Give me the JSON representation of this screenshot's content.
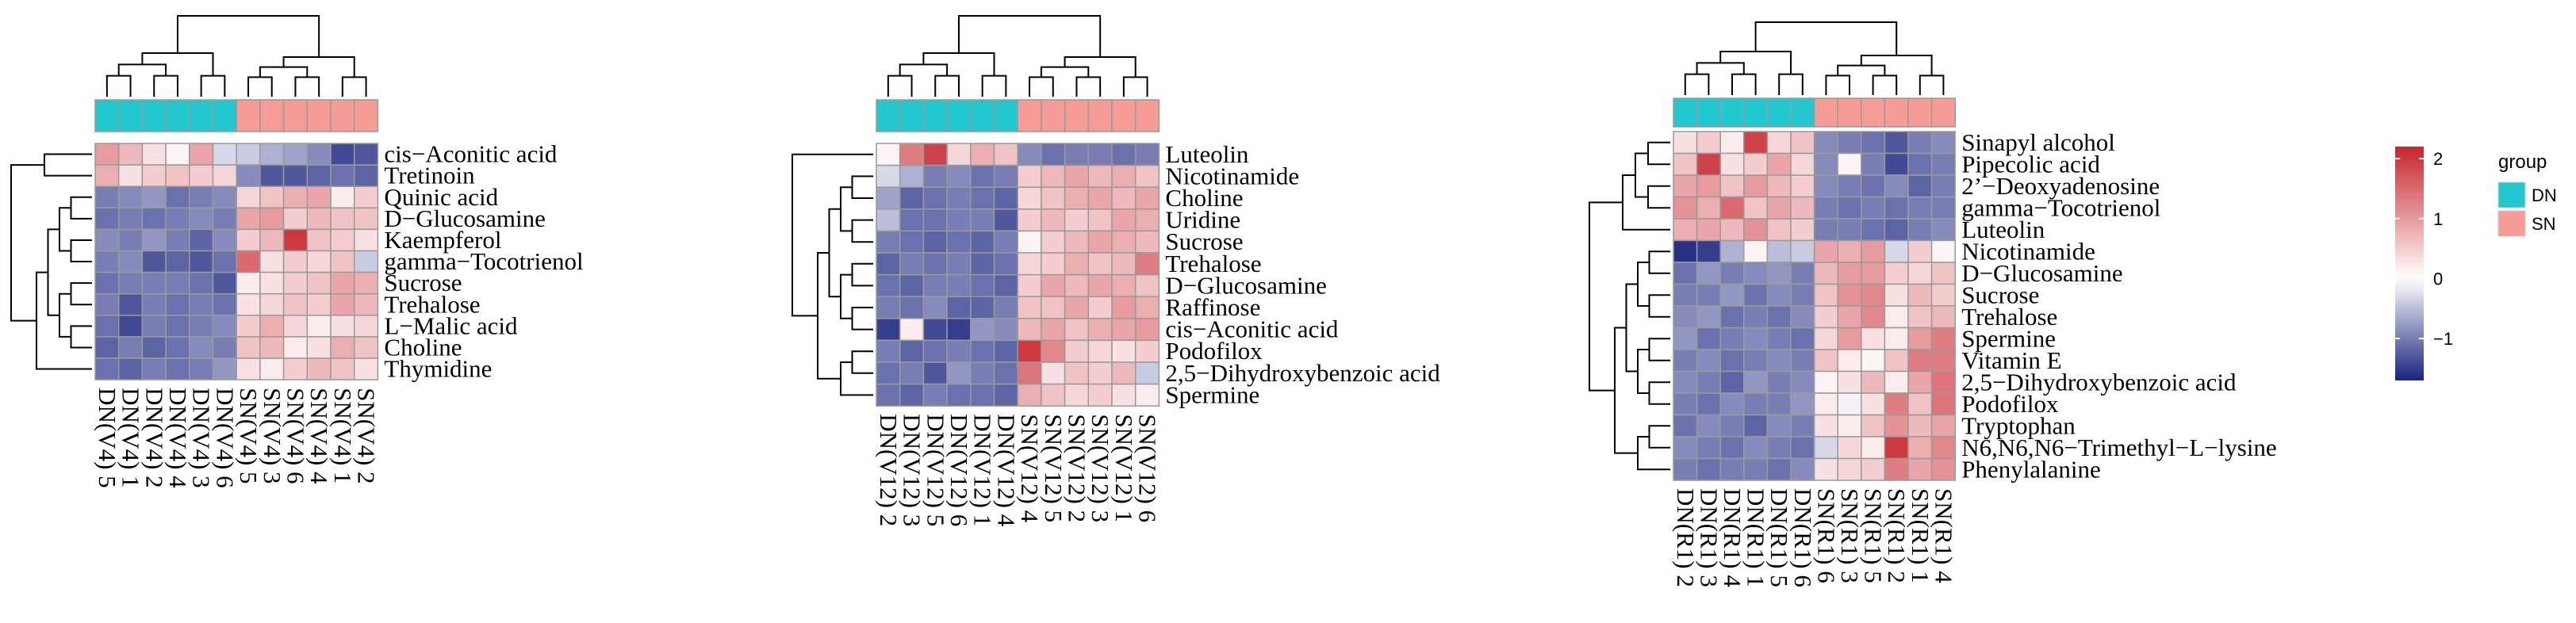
{
  "chart_data": [
    {
      "type": "heatmap",
      "group_colors": {
        "DN": "#22C7CF",
        "SN": "#F59C96"
      },
      "columns": [
        {
          "label": "DN(V4) 5",
          "group": "DN"
        },
        {
          "label": "DN(V4) 1",
          "group": "DN"
        },
        {
          "label": "DN(V4) 2",
          "group": "DN"
        },
        {
          "label": "DN(V4) 4",
          "group": "DN"
        },
        {
          "label": "DN(V4) 3",
          "group": "DN"
        },
        {
          "label": "DN(V4) 6",
          "group": "DN"
        },
        {
          "label": "SN(V4) 5",
          "group": "SN"
        },
        {
          "label": "SN(V4) 3",
          "group": "SN"
        },
        {
          "label": "SN(V4) 6",
          "group": "SN"
        },
        {
          "label": "SN(V4) 4",
          "group": "SN"
        },
        {
          "label": "SN(V4) 1",
          "group": "SN"
        },
        {
          "label": "SN(V4) 2",
          "group": "SN"
        }
      ],
      "rows": [
        "cis−Aconitic acid",
        "Tretinoin",
        "Quinic acid",
        "D−Glucosamine",
        "Kaempferol",
        "gamma−Tocotrienol",
        "Sucrose",
        "Trehalose",
        "L−Malic acid",
        "Choline",
        "Thymidine"
      ],
      "values": [
        [
          1.0,
          0.7,
          0.3,
          0.1,
          0.9,
          -0.3,
          -0.4,
          -0.6,
          -0.7,
          -0.9,
          -1.4,
          -1.3
        ],
        [
          0.8,
          0.3,
          0.5,
          0.6,
          0.5,
          0.4,
          -0.9,
          -1.3,
          -1.3,
          -1.2,
          -1.1,
          -1.2
        ],
        [
          -1.0,
          -0.9,
          -0.8,
          -1.1,
          -1.0,
          -0.9,
          0.4,
          0.6,
          0.8,
          0.9,
          0.2,
          0.5
        ],
        [
          -1.1,
          -1.0,
          -1.1,
          -1.0,
          -0.9,
          -1.0,
          0.9,
          1.0,
          0.5,
          0.7,
          0.6,
          0.6
        ],
        [
          -0.9,
          -1.0,
          -0.8,
          -1.0,
          -1.2,
          -0.9,
          0.5,
          0.7,
          2.0,
          0.6,
          0.5,
          0.3
        ],
        [
          -1.0,
          -0.9,
          -1.3,
          -1.2,
          -1.3,
          -1.1,
          1.5,
          0.3,
          0.5,
          0.4,
          0.6,
          -0.4
        ],
        [
          -1.1,
          -1.0,
          -1.0,
          -1.0,
          -1.1,
          -1.3,
          0.2,
          0.3,
          0.5,
          0.6,
          0.9,
          0.8
        ],
        [
          -1.0,
          -1.3,
          -1.0,
          -1.1,
          -1.0,
          -1.1,
          0.3,
          0.4,
          0.6,
          0.5,
          0.9,
          0.7
        ],
        [
          -1.1,
          -1.4,
          -1.0,
          -1.1,
          -1.0,
          -0.9,
          0.5,
          0.8,
          0.4,
          0.2,
          0.3,
          0.4
        ],
        [
          -1.2,
          -1.0,
          -1.2,
          -1.1,
          -0.9,
          -1.0,
          0.6,
          0.7,
          0.2,
          0.3,
          0.8,
          0.6
        ],
        [
          -1.1,
          -1.2,
          -1.0,
          -1.1,
          -1.0,
          -0.8,
          0.3,
          0.2,
          0.5,
          0.7,
          0.6,
          0.3
        ]
      ]
    },
    {
      "type": "heatmap",
      "group_colors": {
        "DN": "#22C7CF",
        "SN": "#F59C96"
      },
      "columns": [
        {
          "label": "DN(V12) 2",
          "group": "DN"
        },
        {
          "label": "DN(V12) 3",
          "group": "DN"
        },
        {
          "label": "DN(V12) 5",
          "group": "DN"
        },
        {
          "label": "DN(V12) 6",
          "group": "DN"
        },
        {
          "label": "DN(V12) 1",
          "group": "DN"
        },
        {
          "label": "DN(V12) 4",
          "group": "DN"
        },
        {
          "label": "SN(V12) 4",
          "group": "SN"
        },
        {
          "label": "SN(V12) 5",
          "group": "SN"
        },
        {
          "label": "SN(V12) 2",
          "group": "SN"
        },
        {
          "label": "SN(V12) 3",
          "group": "SN"
        },
        {
          "label": "SN(V12) 1",
          "group": "SN"
        },
        {
          "label": "SN(V12) 6",
          "group": "SN"
        }
      ],
      "rows": [
        "Luteolin",
        "Nicotinamide",
        "Choline",
        "Uridine",
        "Sucrose",
        "Trehalose",
        "D−Glucosamine",
        "Raffinose",
        "cis−Aconitic acid",
        "Podofilox",
        "2,5−Dihydroxybenzoic acid",
        "Spermine"
      ],
      "values": [
        [
          0.1,
          1.3,
          1.9,
          0.4,
          0.8,
          0.6,
          -0.9,
          -1.1,
          -1.0,
          -1.0,
          -1.1,
          -1.0
        ],
        [
          -0.3,
          -0.6,
          -1.0,
          -0.9,
          -1.1,
          -1.0,
          0.5,
          0.7,
          0.9,
          0.7,
          0.8,
          0.6
        ],
        [
          -0.7,
          -1.2,
          -1.1,
          -1.0,
          -1.1,
          -1.2,
          0.4,
          0.6,
          0.8,
          0.9,
          0.7,
          0.9
        ],
        [
          -0.5,
          -1.1,
          -1.1,
          -1.0,
          -1.0,
          -1.3,
          0.5,
          0.7,
          0.5,
          0.6,
          0.9,
          0.8
        ],
        [
          -1.0,
          -1.1,
          -1.2,
          -1.1,
          -1.2,
          -1.0,
          0.1,
          0.5,
          0.7,
          0.9,
          0.8,
          0.7
        ],
        [
          -1.2,
          -1.0,
          -1.1,
          -1.0,
          -1.2,
          -1.1,
          0.4,
          0.5,
          0.8,
          0.6,
          0.7,
          1.3
        ],
        [
          -1.1,
          -1.2,
          -1.0,
          -1.0,
          -1.1,
          -1.2,
          0.5,
          0.9,
          0.7,
          0.9,
          0.8,
          0.6
        ],
        [
          -1.0,
          -1.1,
          -0.9,
          -1.2,
          -1.2,
          -1.0,
          0.6,
          0.6,
          0.9,
          0.5,
          1.0,
          0.8
        ],
        [
          -1.5,
          0.2,
          -1.4,
          -1.5,
          -0.8,
          -0.9,
          0.7,
          0.9,
          0.6,
          0.8,
          0.9,
          1.0
        ],
        [
          -1.0,
          -1.2,
          -1.1,
          -1.0,
          -1.1,
          -1.2,
          2.0,
          1.2,
          0.5,
          0.4,
          0.3,
          0.5
        ],
        [
          -1.1,
          -1.0,
          -1.3,
          -0.8,
          -1.0,
          -1.1,
          1.4,
          0.3,
          0.6,
          0.5,
          0.7,
          -0.4
        ],
        [
          -1.1,
          -1.2,
          -1.0,
          -1.1,
          -1.1,
          -1.2,
          0.8,
          0.6,
          0.4,
          0.5,
          0.3,
          0.2
        ]
      ]
    },
    {
      "type": "heatmap",
      "group_colors": {
        "DN": "#22C7CF",
        "SN": "#F59C96"
      },
      "columns": [
        {
          "label": "DN(R1) 2",
          "group": "DN"
        },
        {
          "label": "DN(R1) 3",
          "group": "DN"
        },
        {
          "label": "DN(R1) 4",
          "group": "DN"
        },
        {
          "label": "DN(R1) 1",
          "group": "DN"
        },
        {
          "label": "DN(R1) 5",
          "group": "DN"
        },
        {
          "label": "DN(R1) 6",
          "group": "DN"
        },
        {
          "label": "SN(R1) 6",
          "group": "SN"
        },
        {
          "label": "SN(R1) 3",
          "group": "SN"
        },
        {
          "label": "SN(R1) 5",
          "group": "SN"
        },
        {
          "label": "SN(R1) 2",
          "group": "SN"
        },
        {
          "label": "SN(R1) 1",
          "group": "SN"
        },
        {
          "label": "SN(R1) 4",
          "group": "SN"
        }
      ],
      "rows": [
        "Sinapyl alcohol",
        "Pipecolic acid",
        "2’−Deoxyadenosine",
        "gamma−Tocotrienol",
        "Luteolin",
        "Nicotinamide",
        "D−Glucosamine",
        "Sucrose",
        "Trehalose",
        "Spermine",
        "Vitamin E",
        "2,5−Dihydroxybenzoic acid",
        "Podofilox",
        "Tryptophan",
        "N6,N6,N6−Trimethyl−L−lysine",
        "Phenylalanine"
      ],
      "values": [
        [
          0.3,
          0.5,
          0.2,
          1.9,
          0.4,
          0.6,
          -0.9,
          -1.0,
          -1.1,
          -1.3,
          -1.0,
          -0.9
        ],
        [
          0.6,
          1.9,
          0.3,
          0.5,
          0.9,
          0.4,
          -0.9,
          0.1,
          -1.0,
          -1.4,
          -1.1,
          -1.0
        ],
        [
          0.9,
          1.0,
          0.6,
          1.0,
          0.7,
          0.5,
          -0.9,
          -1.0,
          -1.1,
          -0.9,
          -1.2,
          -1.0
        ],
        [
          1.1,
          0.8,
          1.5,
          0.6,
          0.9,
          0.7,
          -1.0,
          -1.1,
          -1.0,
          -1.1,
          -1.0,
          -1.0
        ],
        [
          0.8,
          0.9,
          0.7,
          1.1,
          0.6,
          0.5,
          -1.0,
          -1.0,
          -1.1,
          -1.2,
          -1.0,
          -0.9
        ],
        [
          -1.6,
          -1.5,
          -0.6,
          0.1,
          -0.5,
          -0.4,
          0.9,
          0.8,
          1.0,
          -0.3,
          0.5,
          0.1
        ],
        [
          -1.1,
          -0.8,
          -1.0,
          -0.9,
          -0.8,
          -1.0,
          0.7,
          1.0,
          1.0,
          0.5,
          0.4,
          0.6
        ],
        [
          -1.0,
          -1.0,
          -0.8,
          -1.1,
          -0.9,
          -1.0,
          0.6,
          1.1,
          1.2,
          0.3,
          0.7,
          0.5
        ],
        [
          -0.9,
          -0.8,
          -1.1,
          -1.0,
          -1.1,
          -0.9,
          0.5,
          0.9,
          1.2,
          0.2,
          0.6,
          0.7
        ],
        [
          -0.8,
          -1.1,
          -1.0,
          -0.9,
          -1.0,
          -1.1,
          0.4,
          1.0,
          0.3,
          0.2,
          1.0,
          1.3
        ],
        [
          -1.0,
          -0.9,
          -1.1,
          -1.0,
          -0.9,
          -1.0,
          0.6,
          0.2,
          0.1,
          0.6,
          1.3,
          1.3
        ],
        [
          -0.9,
          -1.0,
          -1.2,
          -0.8,
          -1.0,
          -0.9,
          0.1,
          0.3,
          0.7,
          0.2,
          0.9,
          1.4
        ],
        [
          -1.0,
          -1.1,
          -0.9,
          -1.0,
          -1.0,
          -0.8,
          0.2,
          -0.1,
          0.3,
          1.3,
          0.6,
          1.4
        ],
        [
          -1.1,
          -0.9,
          -1.0,
          -1.2,
          -0.9,
          -1.0,
          0.3,
          0.2,
          0.6,
          1.1,
          0.7,
          0.9
        ],
        [
          -0.9,
          -1.0,
          -1.1,
          -0.9,
          -1.0,
          -1.1,
          -0.3,
          0.4,
          0.2,
          2.0,
          0.8,
          1.2
        ],
        [
          -1.0,
          -1.1,
          -1.0,
          -1.0,
          -1.1,
          -0.9,
          0.3,
          0.4,
          0.5,
          1.3,
          0.9,
          1.1
        ]
      ]
    }
  ],
  "legend": {
    "scale_ticks": [
      "2",
      "1",
      "0",
      "−1"
    ],
    "scale_values": [
      2,
      1,
      0,
      -1
    ],
    "scale_min": -1.7,
    "scale_max": 2.2,
    "group_title": "group",
    "groups": [
      "DN",
      "SN"
    ]
  }
}
